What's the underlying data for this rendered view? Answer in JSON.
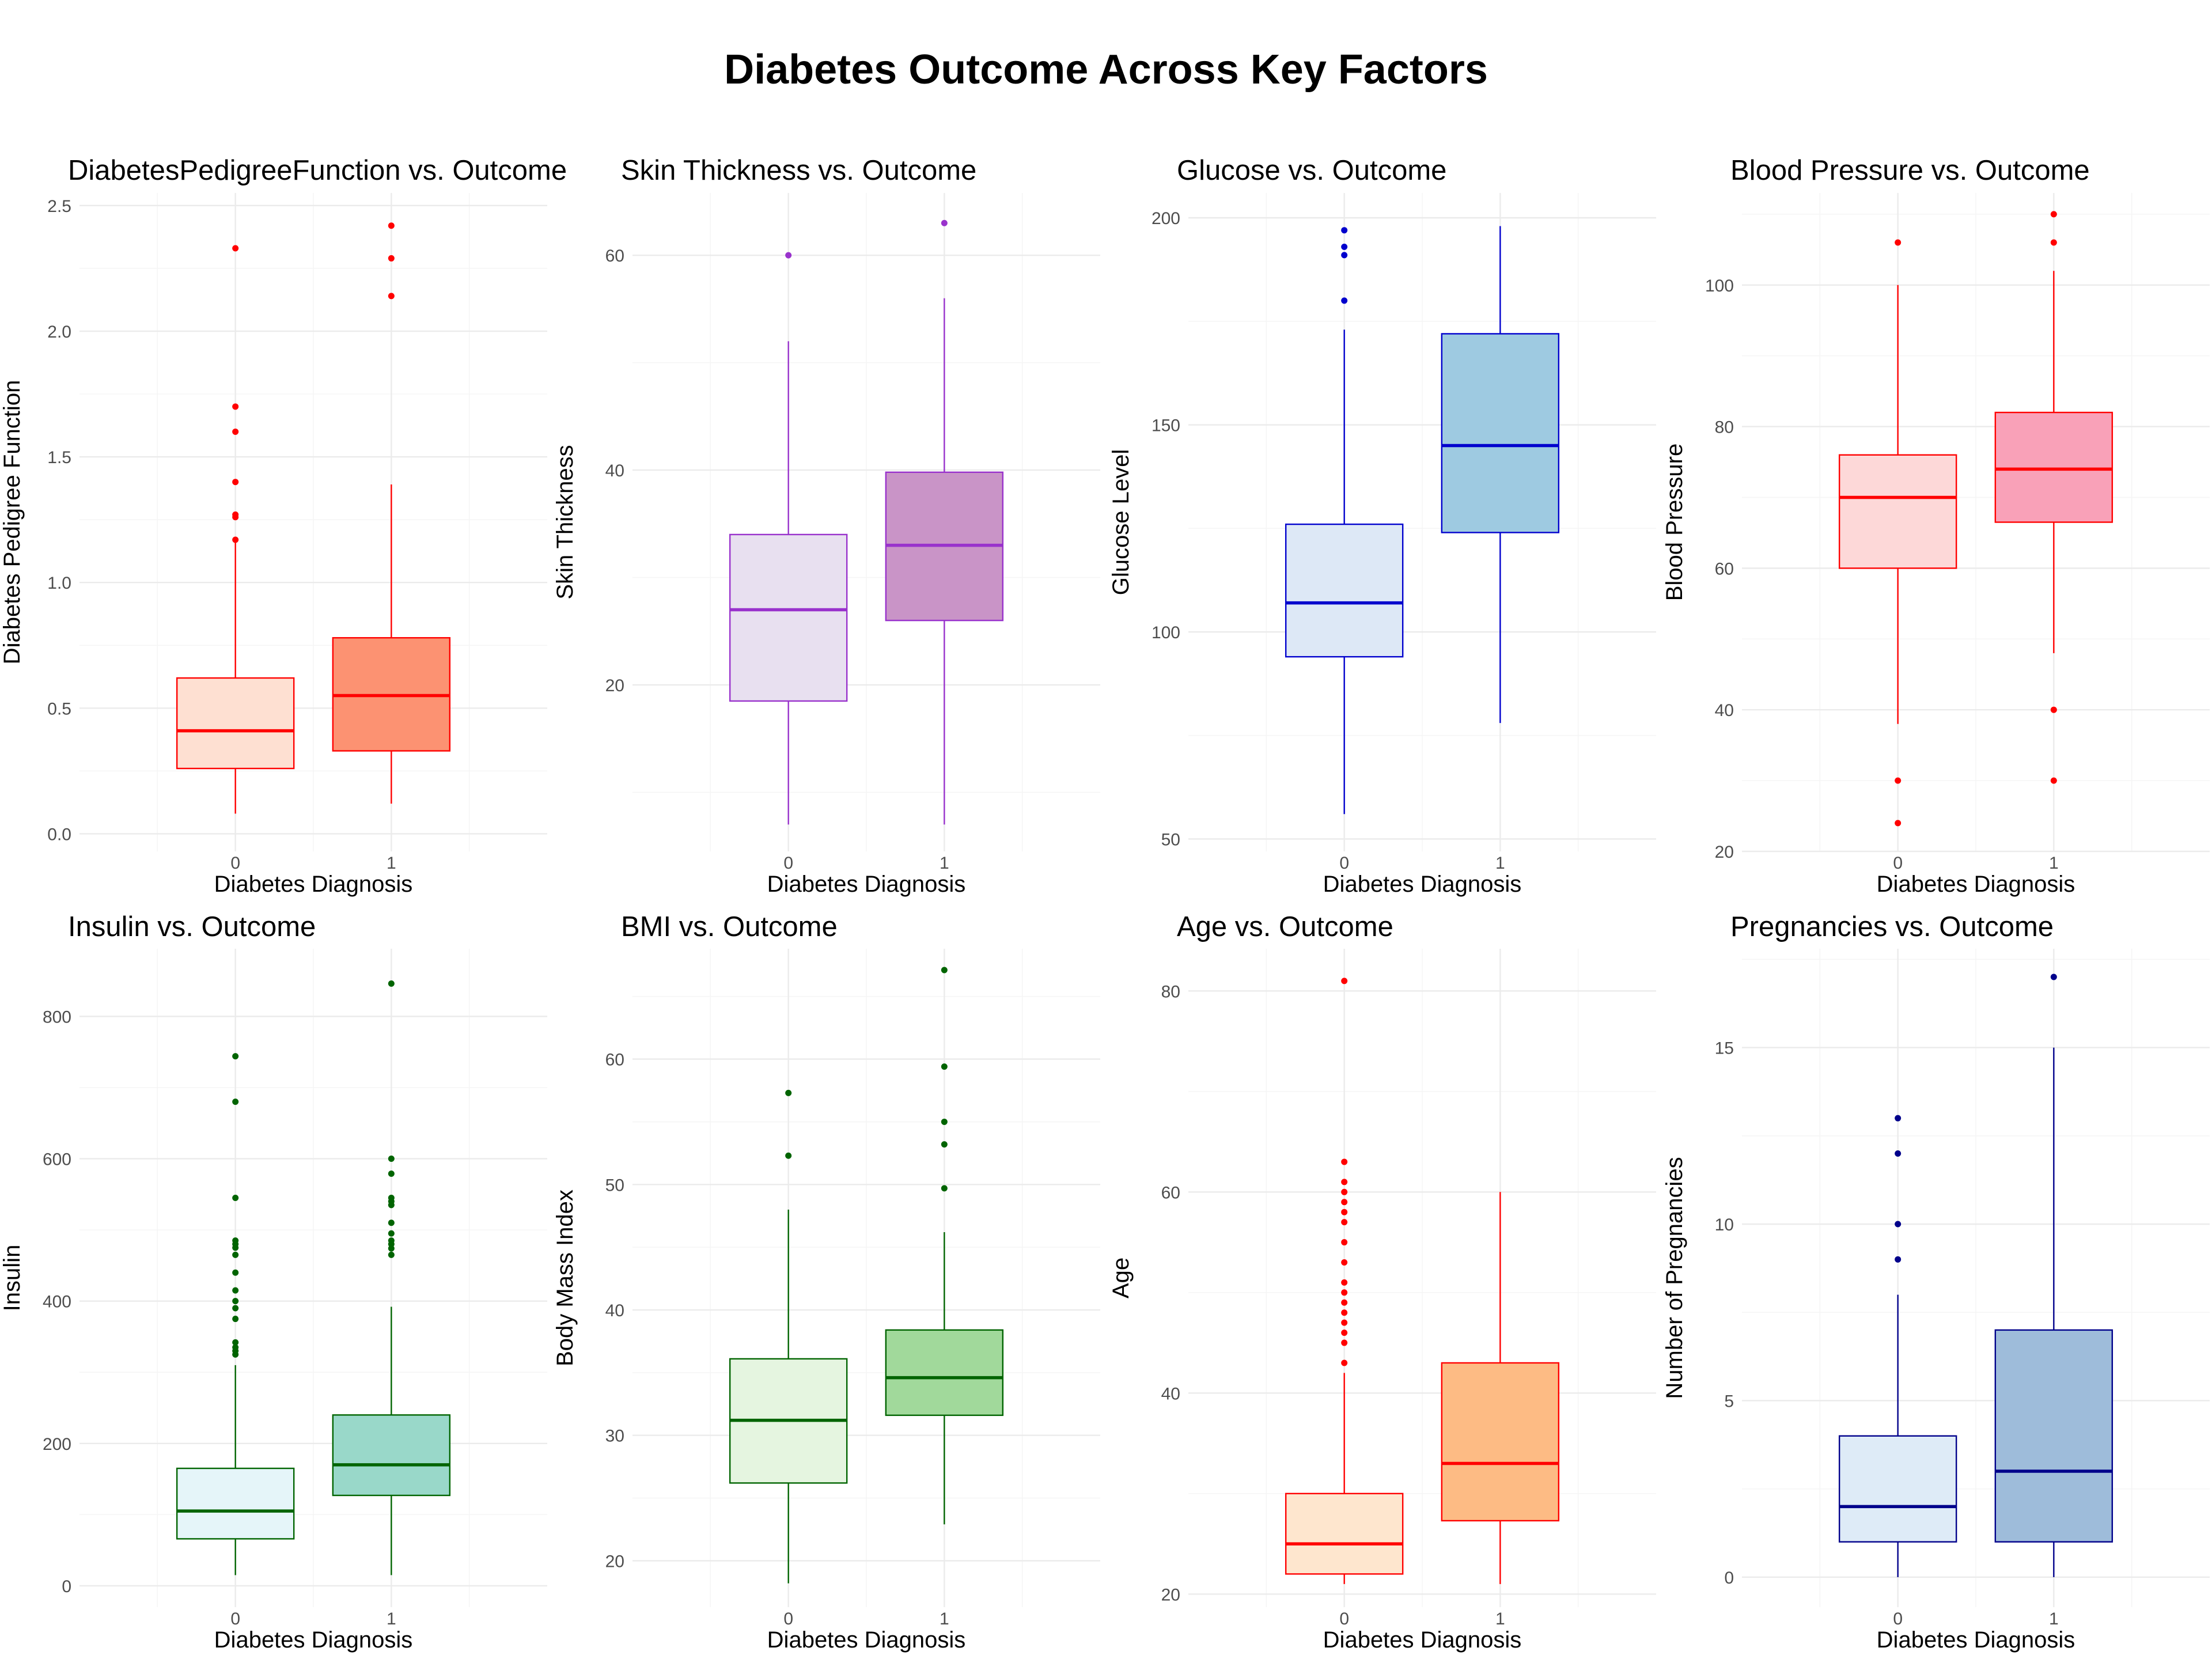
{
  "title": "Diabetes Outcome Across Key Factors",
  "chart_data": [
    {
      "type": "boxplot",
      "title": "DiabetesPedigreeFunction vs. Outcome",
      "xlabel": "Diabetes Diagnosis",
      "ylabel": "Diabetes Pedigree Function",
      "categories": [
        "0",
        "1"
      ],
      "ylim": [
        -0.07,
        2.55
      ],
      "yticks": [
        0.0,
        0.5,
        1.0,
        1.5,
        2.0,
        2.5
      ],
      "ytick_labels": [
        "0.0",
        "0.5",
        "1.0",
        "1.5",
        "2.0",
        "2.5"
      ],
      "line_color": "#ff0000",
      "fills": [
        "#fee0d2",
        "#fc9272"
      ],
      "boxes": [
        {
          "whisker_low": 0.08,
          "q1": 0.26,
          "median": 0.41,
          "q3": 0.62,
          "whisker_high": 1.16,
          "outliers": [
            1.17,
            1.26,
            1.27,
            1.4,
            1.6,
            1.7,
            2.33
          ]
        },
        {
          "whisker_low": 0.12,
          "q1": 0.33,
          "median": 0.55,
          "q3": 0.78,
          "whisker_high": 1.39,
          "outliers": [
            2.14,
            2.29,
            2.42
          ]
        }
      ]
    },
    {
      "type": "boxplot",
      "title": "Skin Thickness vs. Outcome",
      "xlabel": "Diabetes Diagnosis",
      "ylabel": "Skin Thickness",
      "categories": [
        "0",
        "1"
      ],
      "ylim": [
        4.5,
        65.8
      ],
      "yticks": [
        20,
        40,
        60
      ],
      "ytick_labels": [
        "20",
        "40",
        "60"
      ],
      "line_color": "#9932cc",
      "fills": [
        "#e8e0f0",
        "#c994c7"
      ],
      "boxes": [
        {
          "whisker_low": 7,
          "q1": 18.5,
          "median": 27,
          "q3": 34,
          "whisker_high": 52,
          "outliers": [
            60
          ]
        },
        {
          "whisker_low": 7,
          "q1": 26,
          "median": 33,
          "q3": 39.8,
          "whisker_high": 56,
          "outliers": [
            63
          ]
        }
      ]
    },
    {
      "type": "boxplot",
      "title": "Glucose vs. Outcome",
      "xlabel": "Diabetes Diagnosis",
      "ylabel": "Glucose Level",
      "categories": [
        "0",
        "1"
      ],
      "ylim": [
        47,
        206
      ],
      "yticks": [
        50,
        100,
        150,
        200
      ],
      "ytick_labels": [
        "50",
        "100",
        "150",
        "200"
      ],
      "line_color": "#0000cd",
      "fills": [
        "#dde8f6",
        "#9ecae1"
      ],
      "boxes": [
        {
          "whisker_low": 56,
          "q1": 94,
          "median": 107,
          "q3": 126,
          "whisker_high": 173,
          "outliers": [
            180,
            191,
            193,
            197
          ]
        },
        {
          "whisker_low": 78,
          "q1": 124,
          "median": 145,
          "q3": 172,
          "whisker_high": 198,
          "outliers": []
        }
      ]
    },
    {
      "type": "boxplot",
      "title": "Blood Pressure vs. Outcome",
      "xlabel": "Diabetes Diagnosis",
      "ylabel": "Blood Pressure",
      "categories": [
        "0",
        "1"
      ],
      "ylim": [
        20,
        113
      ],
      "yticks": [
        20,
        40,
        60,
        80,
        100
      ],
      "ytick_labels": [
        "20",
        "40",
        "60",
        "80",
        "100"
      ],
      "line_color": "#ff0000",
      "fills": [
        "#fdd8d8",
        "#f9a1b8"
      ],
      "boxes": [
        {
          "whisker_low": 38,
          "q1": 60,
          "median": 70,
          "q3": 76,
          "whisker_high": 100,
          "outliers": [
            24,
            30,
            106
          ]
        },
        {
          "whisker_low": 48,
          "q1": 66.5,
          "median": 74,
          "q3": 82,
          "whisker_high": 102,
          "outliers": [
            30,
            40,
            106,
            110
          ]
        }
      ]
    },
    {
      "type": "boxplot",
      "title": "Insulin vs. Outcome",
      "xlabel": "Diabetes Diagnosis",
      "ylabel": "Insulin",
      "categories": [
        "0",
        "1"
      ],
      "ylim": [
        -30,
        895
      ],
      "yticks": [
        0,
        200,
        400,
        600,
        800
      ],
      "ytick_labels": [
        "0",
        "200",
        "400",
        "600",
        "800"
      ],
      "line_color": "#006400",
      "fills": [
        "#e5f5f9",
        "#99d8c9"
      ],
      "boxes": [
        {
          "whisker_low": 15,
          "q1": 66,
          "median": 105,
          "q3": 165,
          "whisker_high": 310,
          "outliers": [
            325,
            330,
            335,
            342,
            375,
            390,
            400,
            415,
            440,
            465,
            475,
            480,
            485,
            545,
            680,
            744
          ]
        },
        {
          "whisker_low": 15,
          "q1": 127,
          "median": 170,
          "q3": 240,
          "whisker_high": 392,
          "outliers": [
            465,
            474,
            480,
            485,
            495,
            510,
            535,
            540,
            545,
            579,
            600,
            846
          ]
        }
      ]
    },
    {
      "type": "boxplot",
      "title": "BMI vs. Outcome",
      "xlabel": "Diabetes Diagnosis",
      "ylabel": "Body Mass Index",
      "categories": [
        "0",
        "1"
      ],
      "ylim": [
        16.3,
        68.8
      ],
      "yticks": [
        20,
        30,
        40,
        50,
        60
      ],
      "ytick_labels": [
        "20",
        "30",
        "40",
        "50",
        "60"
      ],
      "line_color": "#006400",
      "fills": [
        "#e5f5e0",
        "#a1d99b"
      ],
      "boxes": [
        {
          "whisker_low": 18.2,
          "q1": 26.2,
          "median": 31.2,
          "q3": 36.1,
          "whisker_high": 48,
          "outliers": [
            52.3,
            57.3
          ]
        },
        {
          "whisker_low": 22.9,
          "q1": 31.6,
          "median": 34.6,
          "q3": 38.4,
          "whisker_high": 46.2,
          "outliers": [
            49.7,
            53.2,
            55,
            59.4,
            67.1
          ]
        }
      ]
    },
    {
      "type": "boxplot",
      "title": "Age vs. Outcome",
      "xlabel": "Diabetes Diagnosis",
      "ylabel": "Age",
      "categories": [
        "0",
        "1"
      ],
      "ylim": [
        18.7,
        84.2
      ],
      "yticks": [
        20,
        40,
        60,
        80
      ],
      "ytick_labels": [
        "20",
        "40",
        "60",
        "80"
      ],
      "line_color": "#ff0000",
      "fills": [
        "#fee6ce",
        "#fdbb84"
      ],
      "boxes": [
        {
          "whisker_low": 21,
          "q1": 22,
          "median": 25,
          "q3": 30,
          "whisker_high": 42,
          "outliers": [
            43,
            45,
            46,
            47,
            48,
            49,
            50,
            51,
            53,
            55,
            57,
            58,
            59,
            60,
            61,
            63,
            81
          ]
        },
        {
          "whisker_low": 21,
          "q1": 27.3,
          "median": 33,
          "q3": 43,
          "whisker_high": 60,
          "outliers": []
        }
      ]
    },
    {
      "type": "boxplot",
      "title": "Pregnancies vs. Outcome",
      "xlabel": "Diabetes Diagnosis",
      "ylabel": "Number of Pregnancies",
      "categories": [
        "0",
        "1"
      ],
      "ylim": [
        -0.85,
        17.8
      ],
      "yticks": [
        0,
        5,
        10,
        15
      ],
      "ytick_labels": [
        "0",
        "5",
        "10",
        "15"
      ],
      "line_color": "#00008b",
      "fills": [
        "#deebf7",
        "#9ebcda"
      ],
      "boxes": [
        {
          "whisker_low": 0,
          "q1": 1,
          "median": 2,
          "q3": 4,
          "whisker_high": 8,
          "outliers": [
            9,
            10,
            12,
            13
          ]
        },
        {
          "whisker_low": 0,
          "q1": 1,
          "median": 3,
          "q3": 7,
          "whisker_high": 15,
          "outliers": [
            17
          ]
        }
      ]
    }
  ]
}
